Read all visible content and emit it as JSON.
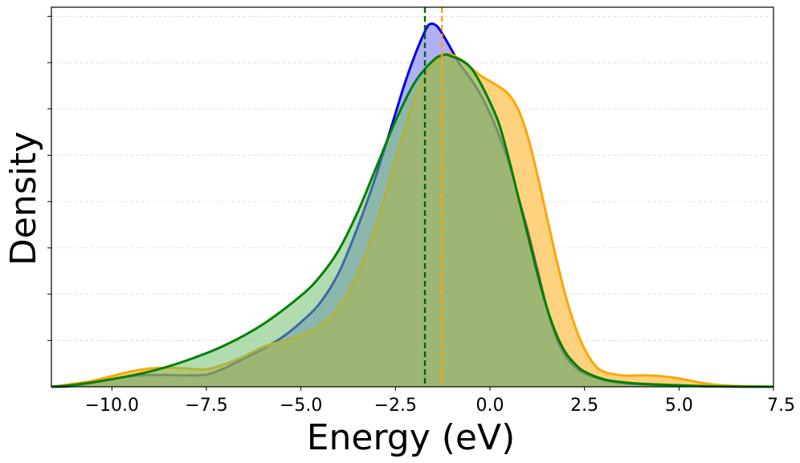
{
  "chart_data": {
    "type": "area",
    "title": "",
    "xlabel": "Energy (eV)",
    "ylabel": "Density",
    "xlim": [
      -11.6,
      7.5
    ],
    "ylim": [
      0,
      1.0
    ],
    "grid": "horizontal dashed",
    "x_tick_values": [
      -10.0,
      -7.5,
      -5.0,
      -2.5,
      0.0,
      2.5,
      5.0,
      7.5
    ],
    "x_tick_labels": [
      "−10.0",
      "−7.5",
      "−5.0",
      "−2.5",
      "0.0",
      "2.5",
      "5.0",
      "7.5"
    ],
    "y_tick_values": [
      0.122,
      0.244,
      0.366,
      0.488,
      0.61,
      0.732,
      0.854,
      0.976
    ],
    "series": [
      {
        "name": "blue",
        "line_color": "#0000ee",
        "fill_color": "#7070f0",
        "fill_opacity": 0.55,
        "x": [
          -11.6,
          -11.0,
          -10.0,
          -9.5,
          -9.0,
          -8.5,
          -8.0,
          -7.5,
          -7.0,
          -6.5,
          -6.0,
          -5.5,
          -5.0,
          -4.5,
          -4.0,
          -3.5,
          -3.0,
          -2.5,
          -2.25,
          -2.0,
          -1.75,
          -1.6,
          -1.4,
          -1.2,
          -1.0,
          -0.8,
          -0.5,
          -0.25,
          0.0,
          0.25,
          0.5,
          0.75,
          1.0,
          1.25,
          1.5,
          1.75,
          2.0,
          2.25,
          2.5,
          3.0,
          3.5,
          4.0,
          5.0,
          6.0,
          7.5
        ],
        "y": [
          0.0,
          0.003,
          0.02,
          0.028,
          0.031,
          0.031,
          0.03,
          0.032,
          0.05,
          0.075,
          0.1,
          0.13,
          0.17,
          0.22,
          0.3,
          0.42,
          0.56,
          0.72,
          0.8,
          0.87,
          0.93,
          0.955,
          0.95,
          0.92,
          0.885,
          0.85,
          0.81,
          0.77,
          0.72,
          0.66,
          0.59,
          0.5,
          0.41,
          0.31,
          0.21,
          0.13,
          0.08,
          0.052,
          0.035,
          0.018,
          0.01,
          0.006,
          0.003,
          0.001,
          0.0
        ]
      },
      {
        "name": "orange",
        "line_color": "#ffa500",
        "fill_color": "#ffa500",
        "fill_opacity": 0.5,
        "x": [
          -11.6,
          -11.0,
          -10.5,
          -10.0,
          -9.5,
          -9.0,
          -8.5,
          -8.0,
          -7.5,
          -7.0,
          -6.5,
          -6.0,
          -5.5,
          -5.0,
          -4.5,
          -4.0,
          -3.5,
          -3.0,
          -2.5,
          -2.0,
          -1.5,
          -1.2,
          -1.0,
          -0.75,
          -0.5,
          -0.25,
          0.0,
          0.25,
          0.5,
          0.75,
          1.0,
          1.25,
          1.5,
          1.75,
          2.0,
          2.25,
          2.5,
          2.75,
          3.0,
          3.5,
          4.0,
          4.5,
          5.0,
          5.5,
          6.0,
          6.5,
          7.5
        ],
        "y": [
          0.0,
          0.008,
          0.016,
          0.028,
          0.04,
          0.048,
          0.05,
          0.048,
          0.046,
          0.06,
          0.08,
          0.105,
          0.12,
          0.135,
          0.16,
          0.21,
          0.3,
          0.43,
          0.6,
          0.76,
          0.85,
          0.875,
          0.875,
          0.86,
          0.84,
          0.82,
          0.805,
          0.79,
          0.77,
          0.73,
          0.66,
          0.56,
          0.45,
          0.34,
          0.24,
          0.16,
          0.1,
          0.06,
          0.04,
          0.03,
          0.03,
          0.028,
          0.022,
          0.012,
          0.005,
          0.002,
          0.0
        ]
      },
      {
        "name": "green",
        "line_color": "#008000",
        "fill_color": "#70bf70",
        "fill_opacity": 0.55,
        "x": [
          -11.6,
          -11.0,
          -10.0,
          -9.0,
          -8.0,
          -7.0,
          -6.0,
          -5.0,
          -4.5,
          -4.0,
          -3.5,
          -3.0,
          -2.5,
          -2.0,
          -1.5,
          -1.2,
          -1.0,
          -0.75,
          -0.5,
          -0.25,
          0.0,
          0.25,
          0.5,
          0.75,
          1.0,
          1.25,
          1.5,
          1.75,
          2.0,
          2.25,
          2.5,
          3.0,
          3.5,
          4.0,
          5.0,
          6.0,
          7.5
        ],
        "y": [
          0.0,
          0.005,
          0.02,
          0.04,
          0.07,
          0.11,
          0.165,
          0.24,
          0.29,
          0.36,
          0.46,
          0.58,
          0.7,
          0.8,
          0.86,
          0.875,
          0.87,
          0.86,
          0.84,
          0.8,
          0.75,
          0.69,
          0.6,
          0.5,
          0.4,
          0.3,
          0.21,
          0.14,
          0.09,
          0.06,
          0.04,
          0.02,
          0.012,
          0.008,
          0.004,
          0.001,
          0.0
        ]
      }
    ],
    "vertical_lines": [
      {
        "name": "green-mean",
        "x": -1.72,
        "color": "#006400",
        "style": "dashed"
      },
      {
        "name": "orange-mean",
        "x": -1.27,
        "color": "#ffa500",
        "style": "dashed"
      }
    ]
  }
}
